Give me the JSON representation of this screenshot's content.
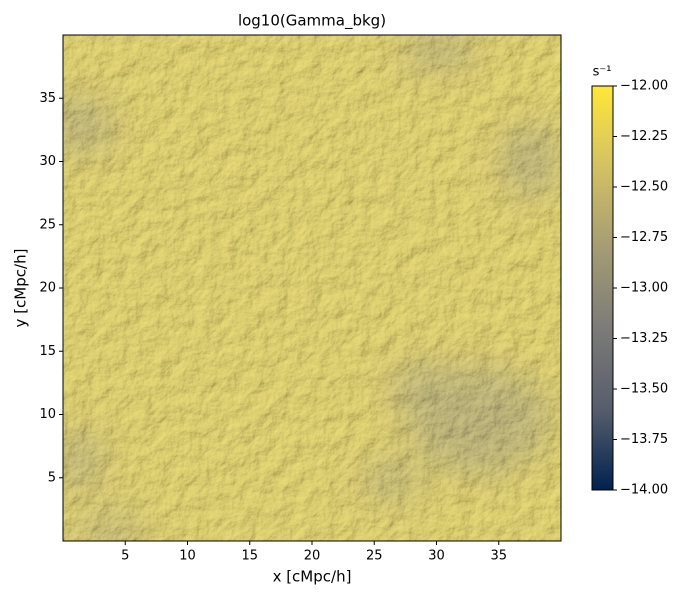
{
  "chart_data": {
    "type": "heatmap",
    "title": "log10(Gamma_bkg)",
    "x_label": "x [cMpc/h]",
    "y_label": "y [cMpc/h]",
    "xlim": [
      0,
      40
    ],
    "ylim": [
      0,
      40
    ],
    "xticks": [
      5,
      10,
      15,
      20,
      25,
      30,
      35
    ],
    "yticks": [
      5,
      10,
      15,
      20,
      25,
      30,
      35
    ],
    "colorbar": {
      "label": "s⁻¹",
      "colors": [
        "#00224e",
        "#575d6d",
        "#7c7b78",
        "#a59c74",
        "#d3c164",
        "#fee838"
      ],
      "lim": [
        -14,
        -12
      ],
      "ticks": [
        {
          "value": -14,
          "label": "−14.00"
        },
        {
          "value": -13.75,
          "label": "−13.75"
        },
        {
          "value": -13.5,
          "label": "−13.50"
        },
        {
          "value": -13.25,
          "label": "−13.25"
        },
        {
          "value": -13,
          "label": "−13.00"
        },
        {
          "value": -12.75,
          "label": "−12.75"
        },
        {
          "value": -12.5,
          "label": "−12.50"
        },
        {
          "value": -12.25,
          "label": "−12.25"
        },
        {
          "value": -12,
          "label": "−12.00"
        }
      ]
    }
  }
}
